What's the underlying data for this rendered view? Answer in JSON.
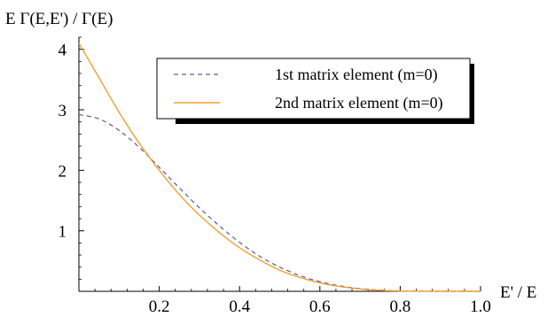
{
  "chart_data": {
    "type": "line",
    "ylabel": "E Γ(E,E') / Γ(E)",
    "xlabel": "E' / E",
    "xlim": [
      0,
      1.0
    ],
    "ylim": [
      0,
      4.2
    ],
    "x_ticks": [
      0.2,
      0.4,
      0.6,
      0.8,
      1.0
    ],
    "x_tick_labels": [
      "0.2",
      "0.4",
      "0.6",
      "0.8",
      "1.0"
    ],
    "y_ticks": [
      1,
      2,
      3,
      4
    ],
    "y_tick_labels": [
      "1",
      "2",
      "3",
      "4"
    ],
    "grid": false,
    "legend_position": "top-right",
    "series": [
      {
        "name": "1st matrix element (m=0)",
        "style": "dashed",
        "color": "#5a5aa8",
        "x": [
          0,
          0.05,
          0.1,
          0.15,
          0.2,
          0.25,
          0.3,
          0.35,
          0.4,
          0.45,
          0.5,
          0.55,
          0.6,
          0.65,
          0.7,
          0.75,
          0.8,
          0.85,
          0.9,
          0.95,
          1.0
        ],
        "y": [
          2.92,
          2.85,
          2.66,
          2.38,
          2.05,
          1.71,
          1.38,
          1.08,
          0.81,
          0.58,
          0.4,
          0.26,
          0.16,
          0.09,
          0.045,
          0.02,
          0.007,
          0.002,
          0,
          0,
          0
        ]
      },
      {
        "name": "2nd matrix element (m=0)",
        "style": "solid",
        "color": "#f0a030",
        "x": [
          0,
          0.05,
          0.1,
          0.15,
          0.2,
          0.25,
          0.3,
          0.35,
          0.4,
          0.45,
          0.5,
          0.55,
          0.6,
          0.65,
          0.7,
          0.75,
          0.8,
          0.85,
          0.9,
          0.95,
          1.0
        ],
        "y": [
          4.1,
          3.53,
          2.96,
          2.45,
          2.0,
          1.6,
          1.26,
          0.97,
          0.72,
          0.52,
          0.35,
          0.23,
          0.14,
          0.08,
          0.04,
          0.015,
          0.005,
          0.001,
          0,
          0,
          0
        ]
      }
    ]
  }
}
